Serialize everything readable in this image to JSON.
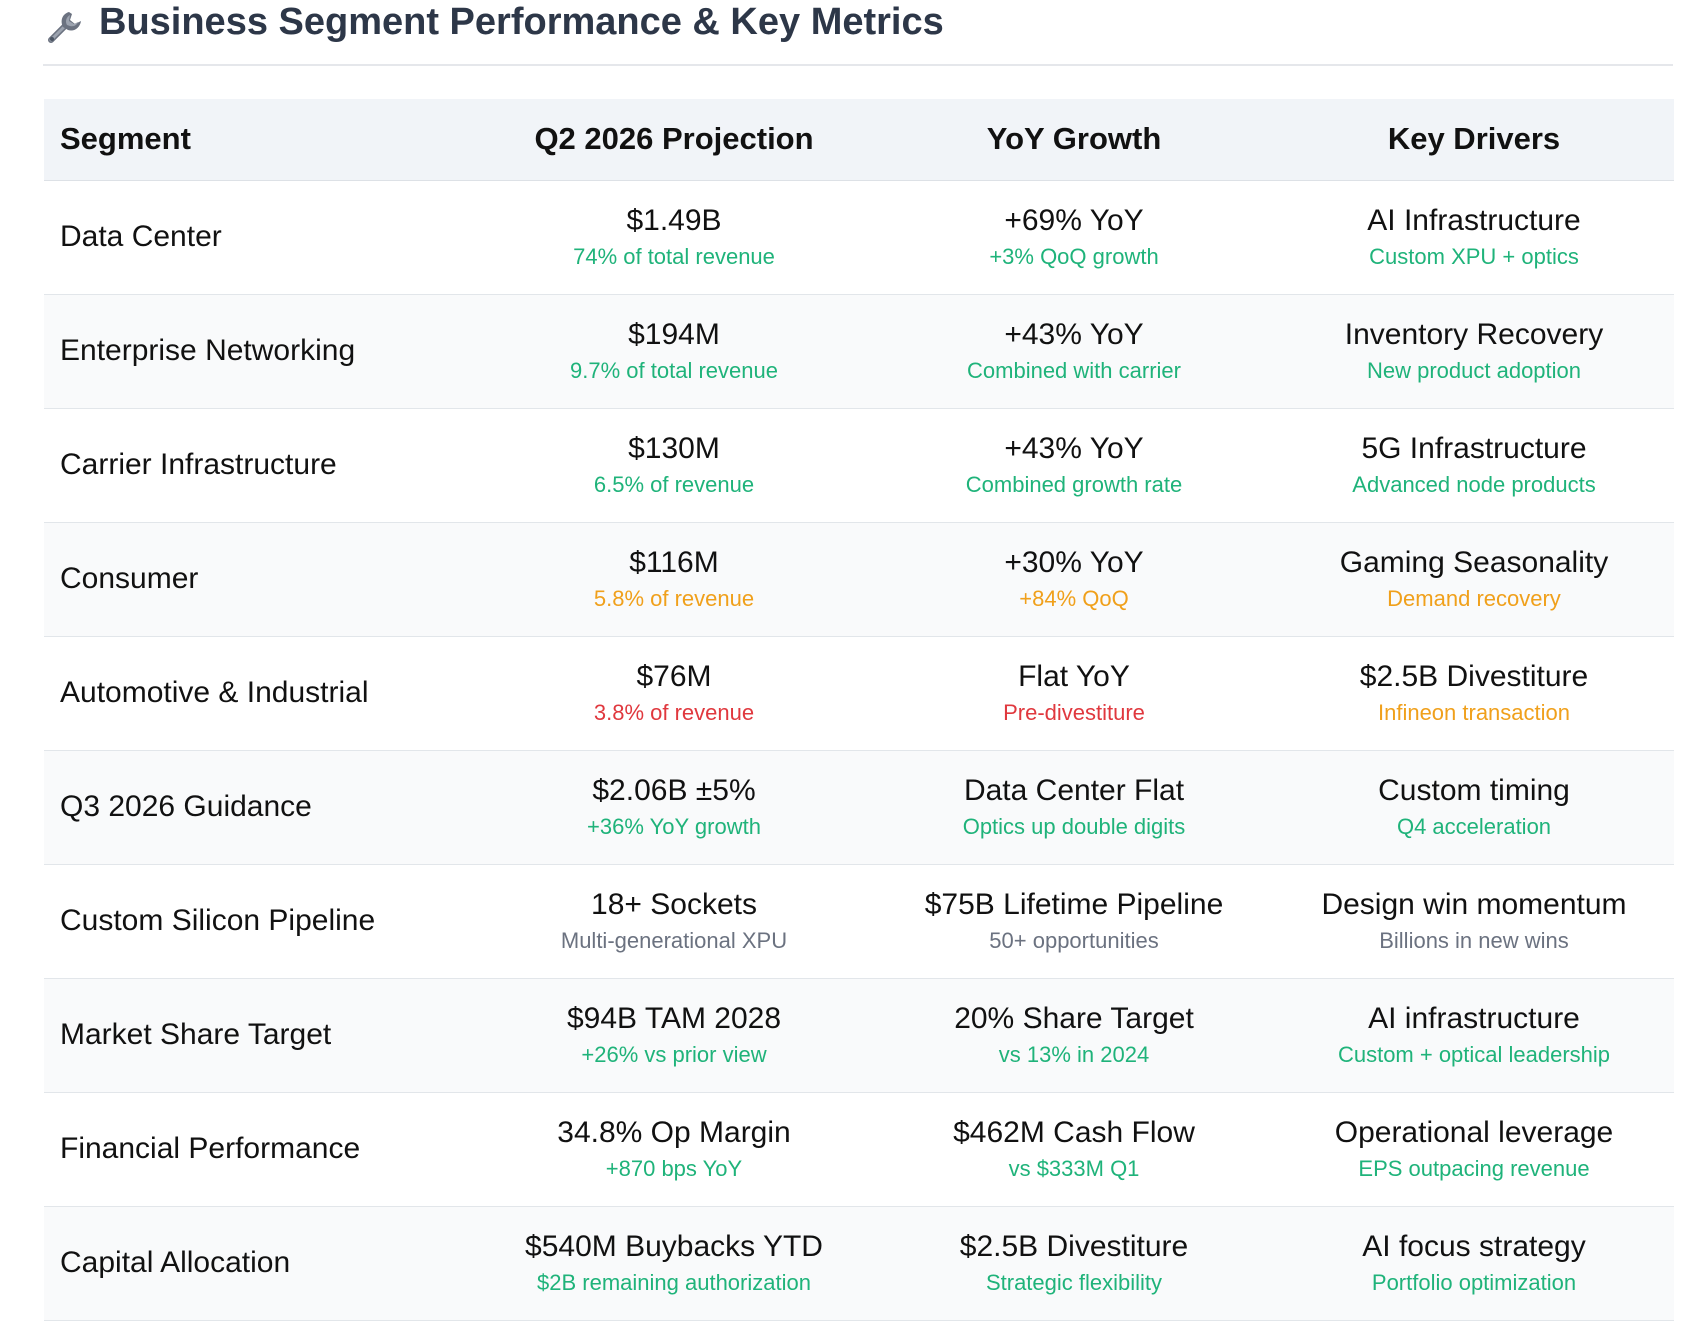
{
  "header": {
    "title": "Business Segment Performance & Key Metrics",
    "icon": "wrench-icon"
  },
  "table": {
    "columns": [
      "Segment",
      "Q2 2026 Projection",
      "YoY Growth",
      "Key Drivers"
    ],
    "rows": [
      {
        "segment": "Data Center",
        "projection": {
          "main": "$1.49B",
          "sub": "74% of total revenue",
          "color": "green"
        },
        "growth": {
          "main": "+69% YoY",
          "sub": "+3% QoQ growth",
          "color": "green"
        },
        "drivers": {
          "main": "AI Infrastructure",
          "sub": "Custom XPU + optics",
          "color": "green"
        }
      },
      {
        "segment": "Enterprise Networking",
        "projection": {
          "main": "$194M",
          "sub": "9.7% of total revenue",
          "color": "green"
        },
        "growth": {
          "main": "+43% YoY",
          "sub": "Combined with carrier",
          "color": "green"
        },
        "drivers": {
          "main": "Inventory Recovery",
          "sub": "New product adoption",
          "color": "green"
        }
      },
      {
        "segment": "Carrier Infrastructure",
        "projection": {
          "main": "$130M",
          "sub": "6.5% of revenue",
          "color": "green"
        },
        "growth": {
          "main": "+43% YoY",
          "sub": "Combined growth rate",
          "color": "green"
        },
        "drivers": {
          "main": "5G Infrastructure",
          "sub": "Advanced node products",
          "color": "green"
        }
      },
      {
        "segment": "Consumer",
        "projection": {
          "main": "$116M",
          "sub": "5.8% of revenue",
          "color": "orange"
        },
        "growth": {
          "main": "+30% YoY",
          "sub": "+84% QoQ",
          "color": "orange"
        },
        "drivers": {
          "main": "Gaming Seasonality",
          "sub": "Demand recovery",
          "color": "orange"
        }
      },
      {
        "segment": "Automotive & Industrial",
        "projection": {
          "main": "$76M",
          "sub": "3.8% of revenue",
          "color": "red"
        },
        "growth": {
          "main": "Flat YoY",
          "sub": "Pre-divestiture",
          "color": "red"
        },
        "drivers": {
          "main": "$2.5B Divestiture",
          "sub": "Infineon transaction",
          "color": "orange"
        }
      },
      {
        "segment": "Q3 2026 Guidance",
        "projection": {
          "main": "$2.06B ±5%",
          "sub": "+36% YoY growth",
          "color": "green"
        },
        "growth": {
          "main": "Data Center Flat",
          "sub": "Optics up double digits",
          "color": "green"
        },
        "drivers": {
          "main": "Custom timing",
          "sub": "Q4 acceleration",
          "color": "green"
        }
      },
      {
        "segment": "Custom Silicon Pipeline",
        "projection": {
          "main": "18+ Sockets",
          "sub": "Multi-generational XPU",
          "color": "gray"
        },
        "growth": {
          "main": "$75B Lifetime Pipeline",
          "sub": "50+ opportunities",
          "color": "gray"
        },
        "drivers": {
          "main": "Design win momentum",
          "sub": "Billions in new wins",
          "color": "gray"
        }
      },
      {
        "segment": "Market Share Target",
        "projection": {
          "main": "$94B TAM 2028",
          "sub": "+26% vs prior view",
          "color": "green"
        },
        "growth": {
          "main": "20% Share Target",
          "sub": "vs 13% in 2024",
          "color": "green"
        },
        "drivers": {
          "main": "AI infrastructure",
          "sub": "Custom + optical leadership",
          "color": "green"
        }
      },
      {
        "segment": "Financial Performance",
        "projection": {
          "main": "34.8% Op Margin",
          "sub": "+870 bps YoY",
          "color": "green"
        },
        "growth": {
          "main": "$462M Cash Flow",
          "sub": "vs $333M Q1",
          "color": "green"
        },
        "drivers": {
          "main": "Operational leverage",
          "sub": "EPS outpacing revenue",
          "color": "green"
        }
      },
      {
        "segment": "Capital Allocation",
        "projection": {
          "main": "$540M Buybacks YTD",
          "sub": "$2B remaining authorization",
          "color": "green"
        },
        "growth": {
          "main": "$2.5B Divestiture",
          "sub": "Strategic flexibility",
          "color": "green"
        },
        "drivers": {
          "main": "AI focus strategy",
          "sub": "Portfolio optimization",
          "color": "green"
        }
      }
    ]
  }
}
